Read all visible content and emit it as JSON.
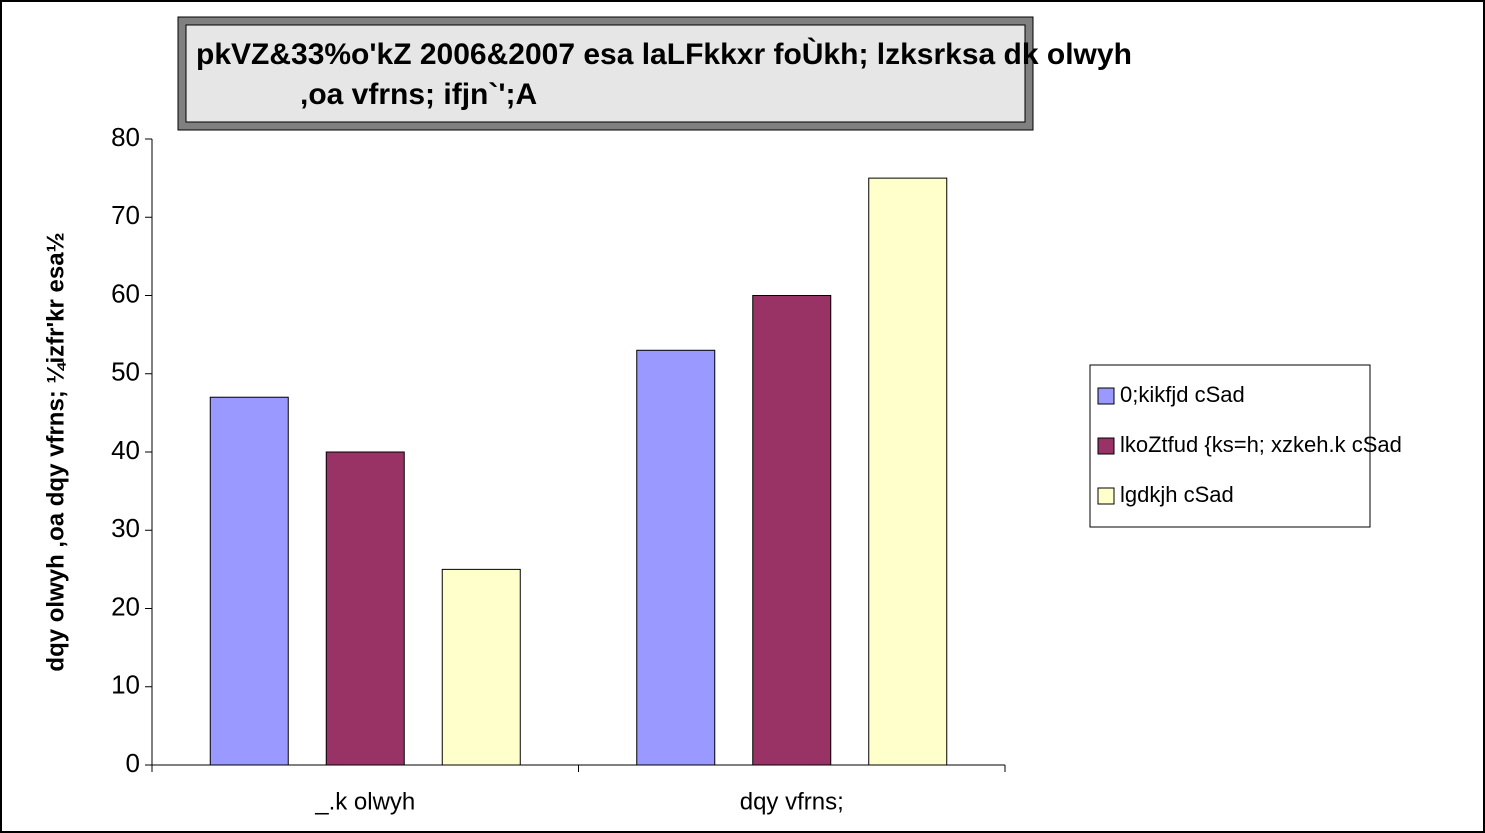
{
  "chart_data": {
    "type": "bar",
    "title": [
      "pkVZ&33%o'kZ 2006&2007 esa laLFkkxr foÙkh; lzksrksa dk olwyh",
      ",oa vfrns; ifjn`';A"
    ],
    "y_label": "dqy olwyh ,oa dqy vfrns; ¼izfr'kr esa½",
    "categories": [
      "_.k olwyh",
      "dqy vfrns;"
    ],
    "series": [
      {
        "name": "0;kikfjd cSad",
        "color": "#9999ff",
        "values": [
          47,
          53
        ]
      },
      {
        "name": "lkoZtfud {ks=h; xzkeh.k cSad",
        "color": "#993366",
        "values": [
          40,
          60
        ]
      },
      {
        "name": "lgdkjh cSad",
        "color": "#ffffcc",
        "values": [
          25,
          75
        ]
      }
    ],
    "ylim": [
      0,
      80
    ],
    "yticks": [
      0,
      10,
      20,
      30,
      40,
      50,
      60,
      70,
      80
    ],
    "legend": "right"
  }
}
